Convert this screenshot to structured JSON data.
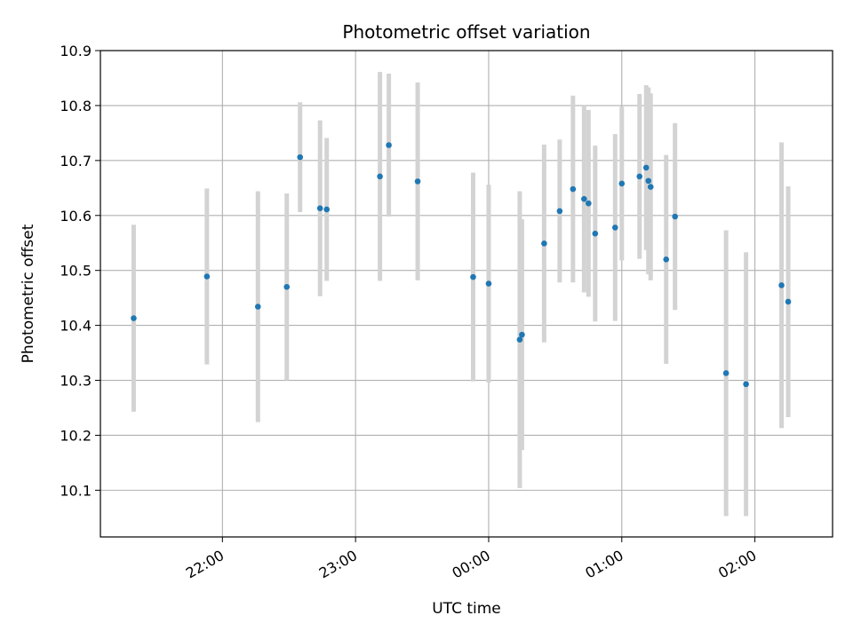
{
  "chart_data": {
    "type": "scatter",
    "title": "Photometric offset variation",
    "xlabel": "UTC time",
    "ylabel": "Photometric offset",
    "x_axis_kind": "time",
    "xlim": [
      "21:05",
      "02:35"
    ],
    "ylim": [
      10.015,
      10.9
    ],
    "x_ticks": [
      "22:00",
      "23:00",
      "00:00",
      "01:00",
      "02:00"
    ],
    "y_ticks": [
      "10.1",
      "10.2",
      "10.3",
      "10.4",
      "10.5",
      "10.6",
      "10.7",
      "10.8",
      "10.9"
    ],
    "grid": true,
    "colors": {
      "marker": "#1f77b4",
      "errorbar": "#d3d3d3",
      "grid": "#b0b0b0"
    },
    "points": [
      {
        "t": "21:20",
        "y": 10.413,
        "err": 0.17
      },
      {
        "t": "21:53",
        "y": 10.489,
        "err": 0.16
      },
      {
        "t": "22:16",
        "y": 10.434,
        "err": 0.21
      },
      {
        "t": "22:29",
        "y": 10.47,
        "err": 0.17
      },
      {
        "t": "22:35",
        "y": 10.706,
        "err": 0.1
      },
      {
        "t": "22:44",
        "y": 10.613,
        "err": 0.16
      },
      {
        "t": "22:47",
        "y": 10.611,
        "err": 0.13
      },
      {
        "t": "23:11",
        "y": 10.671,
        "err": 0.19
      },
      {
        "t": "23:15",
        "y": 10.728,
        "err": 0.13
      },
      {
        "t": "23:28",
        "y": 10.662,
        "err": 0.18
      },
      {
        "t": "23:53",
        "y": 10.488,
        "err": 0.19
      },
      {
        "t": "00:00",
        "y": 10.476,
        "err": 0.18
      },
      {
        "t": "00:14",
        "y": 10.374,
        "err": 0.27
      },
      {
        "t": "00:15",
        "y": 10.383,
        "err": 0.21
      },
      {
        "t": "00:25",
        "y": 10.549,
        "err": 0.18
      },
      {
        "t": "00:32",
        "y": 10.608,
        "err": 0.13
      },
      {
        "t": "00:38",
        "y": 10.648,
        "err": 0.17
      },
      {
        "t": "00:43",
        "y": 10.63,
        "err": 0.17
      },
      {
        "t": "00:45",
        "y": 10.622,
        "err": 0.17
      },
      {
        "t": "00:48",
        "y": 10.567,
        "err": 0.16
      },
      {
        "t": "00:57",
        "y": 10.578,
        "err": 0.17
      },
      {
        "t": "01:00",
        "y": 10.658,
        "err": 0.14
      },
      {
        "t": "01:08",
        "y": 10.671,
        "err": 0.15
      },
      {
        "t": "01:11",
        "y": 10.687,
        "err": 0.15
      },
      {
        "t": "01:12",
        "y": 10.663,
        "err": 0.17
      },
      {
        "t": "01:13",
        "y": 10.652,
        "err": 0.17
      },
      {
        "t": "01:20",
        "y": 10.52,
        "err": 0.19
      },
      {
        "t": "01:24",
        "y": 10.598,
        "err": 0.17
      },
      {
        "t": "01:47",
        "y": 10.313,
        "err": 0.26
      },
      {
        "t": "01:56",
        "y": 10.293,
        "err": 0.24
      },
      {
        "t": "02:12",
        "y": 10.473,
        "err": 0.26
      },
      {
        "t": "02:15",
        "y": 10.443,
        "err": 0.21
      }
    ]
  }
}
